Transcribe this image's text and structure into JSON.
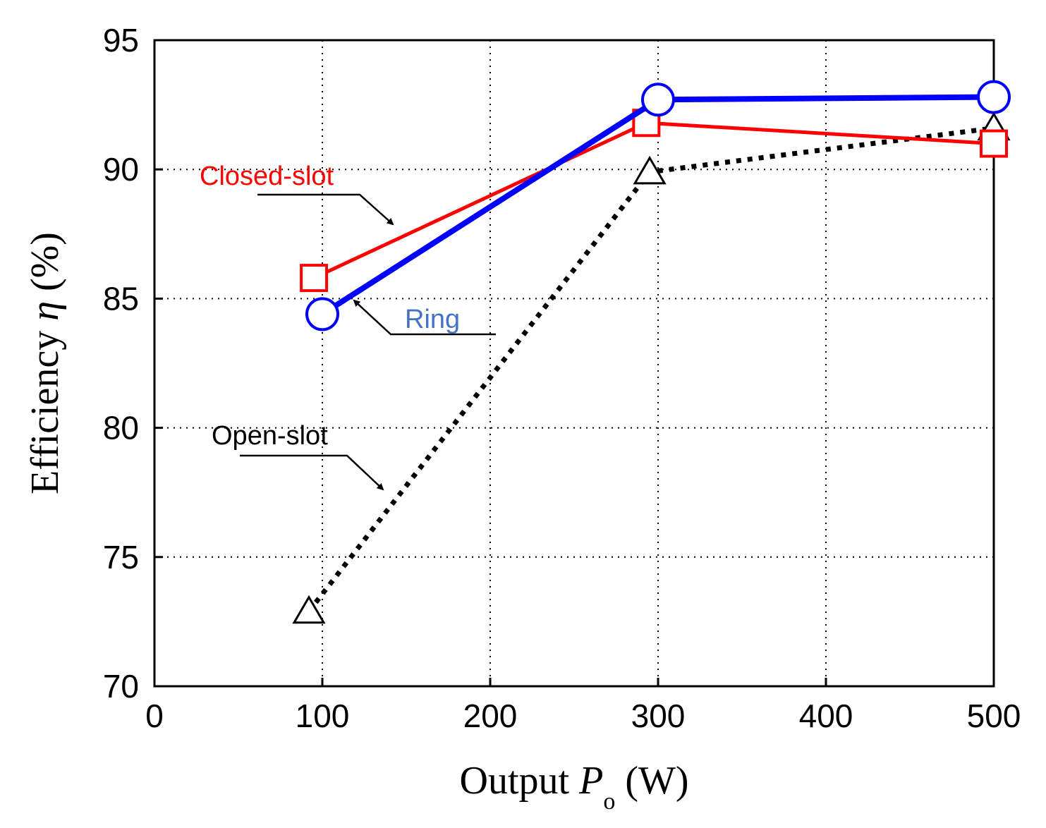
{
  "chart_data": {
    "type": "line",
    "xlabel": {
      "prefix": "Output ",
      "symbol": "P",
      "subscript": "o",
      "unit": " (W)"
    },
    "ylabel": {
      "prefix": "Efficiency ",
      "symbol": "η",
      "unit": " (%)"
    },
    "xlim": [
      0,
      500
    ],
    "ylim": [
      70,
      95
    ],
    "xticks": [
      0,
      100,
      200,
      300,
      400,
      500
    ],
    "yticks": [
      70,
      75,
      80,
      85,
      90,
      95
    ],
    "grid": true,
    "series": [
      {
        "name": "Open-slot",
        "color": "#000000",
        "style": "dotted",
        "marker": "triangle",
        "x": [
          92,
          295,
          500
        ],
        "y": [
          72.9,
          89.9,
          91.6
        ]
      },
      {
        "name": "Closed-slot",
        "color": "#ff0000",
        "style": "solid",
        "marker": "square",
        "x": [
          95,
          293,
          500
        ],
        "y": [
          85.8,
          91.8,
          91.0
        ]
      },
      {
        "name": "Ring",
        "color": "#0000ff",
        "style": "solid",
        "marker": "circle",
        "x": [
          100,
          300,
          500
        ],
        "y": [
          84.4,
          92.7,
          92.8
        ]
      }
    ],
    "annotations": [
      {
        "text": "Closed-slot",
        "color": "#ff0000"
      },
      {
        "text": "Ring",
        "color": "#4472c4"
      },
      {
        "text": "Open-slot",
        "color": "#000000"
      }
    ]
  }
}
